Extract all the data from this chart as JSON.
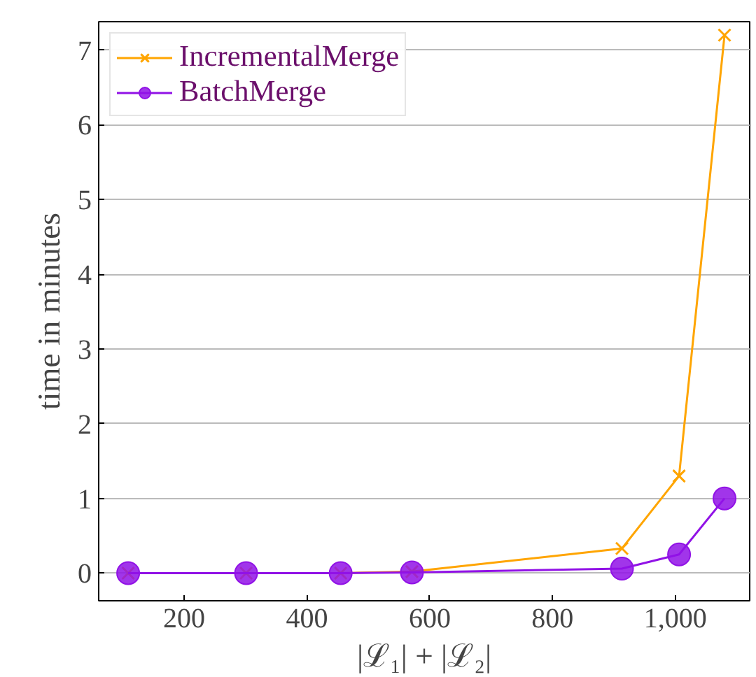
{
  "chart_data": {
    "type": "line",
    "xlabel": "|ℒ₁| + |ℒ₂|",
    "ylabel": "time in minutes",
    "x": [
      109,
      301,
      455,
      571,
      913,
      1006,
      1080
    ],
    "series": [
      {
        "name": "IncrementalMerge",
        "color": "#ffa500",
        "marker": "cross",
        "values": [
          null,
          null,
          0,
          0.02,
          0.33,
          1.3,
          7.2
        ]
      },
      {
        "name": "BatchMerge",
        "color": "#9112e6",
        "marker": "circle",
        "values": [
          0,
          0,
          0,
          0.01,
          0.06,
          0.25,
          1.0
        ]
      }
    ],
    "xlim": [
      61,
      1121
    ],
    "ylim": [
      -0.37,
      7.38
    ],
    "xticks": [
      200,
      400,
      600,
      800,
      {
        "value": 1000,
        "label": "1,000"
      }
    ],
    "yticks": [
      0,
      1,
      2,
      3,
      4,
      5,
      6,
      7
    ],
    "grid": "y",
    "legend": "top left"
  }
}
